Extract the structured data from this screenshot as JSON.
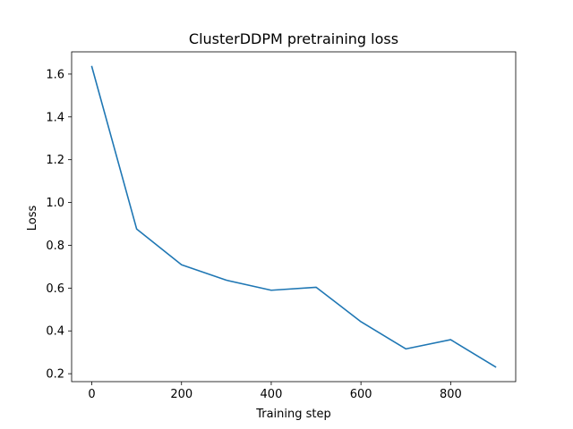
{
  "chart_data": {
    "type": "line",
    "title": "ClusterDDPM pretraining loss",
    "xlabel": "Training step",
    "ylabel": "Loss",
    "xlim": [
      -45,
      945
    ],
    "ylim": [
      0.163,
      1.704
    ],
    "xticks": [
      0,
      200,
      400,
      600,
      800
    ],
    "xtick_labels": [
      "0",
      "200",
      "400",
      "600",
      "800"
    ],
    "yticks": [
      0.2,
      0.4,
      0.6,
      0.8,
      1.0,
      1.2,
      1.4,
      1.6
    ],
    "ytick_labels": [
      "0.2",
      "0.4",
      "0.6",
      "0.8",
      "1.0",
      "1.2",
      "1.4",
      "1.6"
    ],
    "grid": false,
    "series": [
      {
        "color": "#1f77b4",
        "x": [
          0,
          100,
          200,
          300,
          400,
          500,
          600,
          700,
          800,
          900
        ],
        "y": [
          1.635,
          0.876,
          0.709,
          0.637,
          0.59,
          0.604,
          0.443,
          0.316,
          0.359,
          0.232
        ]
      }
    ]
  }
}
